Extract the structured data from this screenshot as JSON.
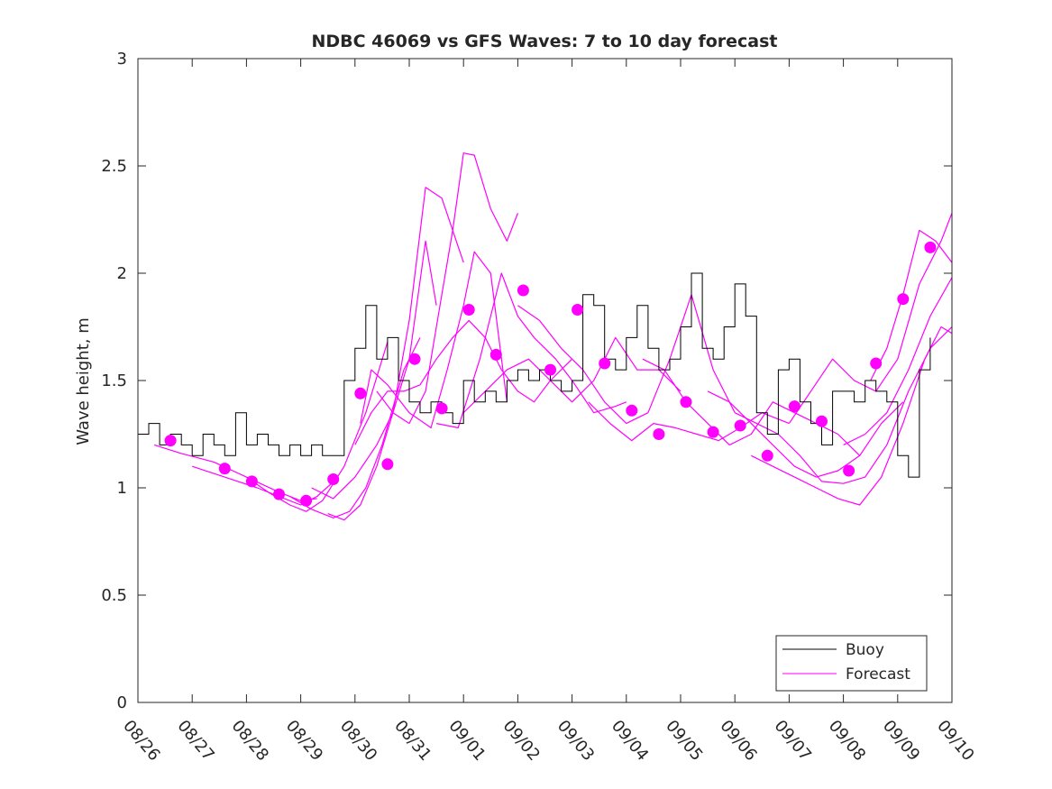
{
  "chart_data": {
    "type": "line",
    "title": "NDBC 46069 vs GFS Waves: 7 to 10 day forecast",
    "xlabel": "",
    "ylabel": "Wave height, m",
    "xlim": [
      0,
      15
    ],
    "ylim": [
      0,
      3
    ],
    "x_units": "days since 08/26",
    "x_ticks": [
      0,
      1,
      2,
      3,
      4,
      5,
      6,
      7,
      8,
      9,
      10,
      11,
      12,
      13,
      14,
      15
    ],
    "x_tick_labels": [
      "08/26",
      "08/27",
      "08/28",
      "08/29",
      "08/30",
      "08/31",
      "09/01",
      "09/02",
      "09/03",
      "09/04",
      "09/05",
      "09/06",
      "09/07",
      "09/08",
      "09/09",
      "09/10"
    ],
    "y_ticks": [
      0,
      0.5,
      1,
      1.5,
      2,
      2.5,
      3
    ],
    "y_tick_labels": [
      "0",
      "0.5",
      "1",
      "1.5",
      "2",
      "2.5",
      "3"
    ],
    "legend": {
      "position": "bottom-right",
      "entries": [
        "Buoy",
        "Forecast"
      ]
    },
    "colors": {
      "buoy": "#000000",
      "forecast": "#ff00ff",
      "axis": "#262626"
    },
    "series": [
      {
        "name": "Buoy",
        "x": [
          0.0,
          0.2,
          0.4,
          0.6,
          0.8,
          1.0,
          1.2,
          1.4,
          1.6,
          1.8,
          2.0,
          2.2,
          2.4,
          2.6,
          2.8,
          3.0,
          3.2,
          3.4,
          3.6,
          3.8,
          4.0,
          4.2,
          4.4,
          4.6,
          4.8,
          5.0,
          5.2,
          5.4,
          5.6,
          5.8,
          6.0,
          6.2,
          6.4,
          6.6,
          6.8,
          7.0,
          7.2,
          7.4,
          7.6,
          7.8,
          8.0,
          8.2,
          8.4,
          8.6,
          8.8,
          9.0,
          9.2,
          9.4,
          9.6,
          9.8,
          10.0,
          10.2,
          10.4,
          10.6,
          10.8,
          11.0,
          11.2,
          11.4,
          11.6,
          11.8,
          12.0,
          12.2,
          12.4,
          12.6,
          12.8,
          13.0,
          13.2,
          13.4,
          13.6,
          13.8,
          14.0,
          14.2,
          14.4,
          14.6
        ],
        "y": [
          1.25,
          1.3,
          1.2,
          1.25,
          1.2,
          1.15,
          1.25,
          1.2,
          1.15,
          1.35,
          1.2,
          1.25,
          1.2,
          1.15,
          1.2,
          1.15,
          1.2,
          1.15,
          1.15,
          1.5,
          1.65,
          1.85,
          1.6,
          1.7,
          1.5,
          1.4,
          1.35,
          1.4,
          1.35,
          1.3,
          1.5,
          1.4,
          1.45,
          1.4,
          1.5,
          1.55,
          1.5,
          1.55,
          1.5,
          1.45,
          1.5,
          1.9,
          1.85,
          1.6,
          1.55,
          1.7,
          1.85,
          1.65,
          1.55,
          1.6,
          1.75,
          2.0,
          1.65,
          1.6,
          1.75,
          1.95,
          1.8,
          1.35,
          1.25,
          1.55,
          1.6,
          1.4,
          1.3,
          1.2,
          1.45,
          1.45,
          1.4,
          1.5,
          1.45,
          1.4,
          1.15,
          1.05,
          1.55,
          1.7
        ]
      },
      {
        "name": "Forecast",
        "segments": [
          {
            "x": [
              0.3,
              0.8,
              1.4,
              2.0,
              2.6,
              3.0,
              3.3
            ],
            "y": [
              1.2,
              1.16,
              1.12,
              1.05,
              0.98,
              0.94,
              0.95
            ]
          },
          {
            "x": [
              1.0,
              1.6,
              2.2,
              2.7,
              3.0,
              3.3,
              3.7
            ],
            "y": [
              1.1,
              1.05,
              1.0,
              0.95,
              0.92,
              0.96,
              1.05
            ]
          },
          {
            "x": [
              2.0,
              2.4,
              2.8,
              3.1,
              3.4,
              3.8,
              4.2,
              4.6
            ],
            "y": [
              1.05,
              0.98,
              0.92,
              0.89,
              0.94,
              1.1,
              1.35,
              1.68
            ]
          },
          {
            "x": [
              2.8,
              3.2,
              3.6,
              3.9,
              4.2,
              4.5,
              4.9,
              5.2
            ],
            "y": [
              0.96,
              0.9,
              0.86,
              0.89,
              1.0,
              1.2,
              1.55,
              1.7
            ]
          },
          {
            "x": [
              3.2,
              3.6,
              4.0,
              4.4,
              4.7,
              5.0,
              5.3,
              5.5
            ],
            "y": [
              1.0,
              0.95,
              1.05,
              1.2,
              1.35,
              1.6,
              2.15,
              1.85
            ]
          },
          {
            "x": [
              3.5,
              3.8,
              4.1,
              4.4,
              4.7,
              5.0,
              5.3,
              5.6,
              6.0
            ],
            "y": [
              0.88,
              0.85,
              0.92,
              1.1,
              1.35,
              1.78,
              2.4,
              2.35,
              2.05
            ]
          },
          {
            "x": [
              4.1,
              4.3,
              4.6,
              5.0,
              5.4,
              5.7,
              6.0,
              6.2,
              6.5,
              6.8
            ],
            "y": [
              1.3,
              1.55,
              1.48,
              1.35,
              1.28,
              1.55,
              1.85,
              2.1,
              2.0,
              1.4
            ]
          },
          {
            "x": [
              4.4,
              4.7,
              5.0,
              5.3,
              5.6,
              5.8,
              6.0,
              6.2,
              6.5,
              6.8,
              7.0
            ],
            "y": [
              1.45,
              1.35,
              1.3,
              1.45,
              1.9,
              2.2,
              2.56,
              2.55,
              2.3,
              2.15,
              2.28
            ]
          },
          {
            "x": [
              4.0,
              4.3,
              4.6,
              4.9,
              5.2,
              5.5,
              5.8,
              6.1,
              6.4,
              6.7,
              7.0,
              7.3,
              7.6,
              8.0
            ],
            "y": [
              1.2,
              1.35,
              1.45,
              1.45,
              1.48,
              1.6,
              1.7,
              1.78,
              1.7,
              1.55,
              1.45,
              1.4,
              1.5,
              1.6
            ]
          },
          {
            "x": [
              5.5,
              5.9,
              6.3,
              6.7,
              7.0,
              7.3,
              7.7,
              8.0,
              8.4,
              8.8,
              9.0
            ],
            "y": [
              1.3,
              1.28,
              1.6,
              2.0,
              1.8,
              1.7,
              1.6,
              1.5,
              1.35,
              1.38,
              1.4
            ]
          },
          {
            "x": [
              6.0,
              6.4,
              6.8,
              7.2,
              7.6,
              8.0,
              8.4,
              8.8,
              9.2,
              9.6,
              10.0
            ],
            "y": [
              1.35,
              1.45,
              1.55,
              1.6,
              1.5,
              1.4,
              1.5,
              1.7,
              1.55,
              1.55,
              1.45
            ]
          },
          {
            "x": [
              7.0,
              7.4,
              7.8,
              8.2,
              8.6,
              9.0,
              9.4,
              9.8,
              10.2,
              10.6,
              11.0
            ],
            "y": [
              1.85,
              1.78,
              1.65,
              1.55,
              1.4,
              1.3,
              1.35,
              1.6,
              1.9,
              1.55,
              1.35
            ]
          },
          {
            "x": [
              8.3,
              8.7,
              9.1,
              9.5,
              9.9,
              10.3,
              10.7,
              11.1,
              11.5,
              12.0
            ],
            "y": [
              1.4,
              1.3,
              1.22,
              1.3,
              1.28,
              1.25,
              1.22,
              1.28,
              1.35,
              1.3
            ]
          },
          {
            "x": [
              9.3,
              9.7,
              10.1,
              10.5,
              10.9,
              11.3,
              11.7,
              12.1,
              12.5,
              12.9,
              13.3
            ],
            "y": [
              1.6,
              1.55,
              1.4,
              1.3,
              1.2,
              1.25,
              1.4,
              1.35,
              1.3,
              1.25,
              1.15
            ]
          },
          {
            "x": [
              10.5,
              10.9,
              11.3,
              11.7,
              12.1,
              12.5,
              12.9,
              13.3,
              13.7,
              14.1
            ],
            "y": [
              1.45,
              1.4,
              1.3,
              1.2,
              1.1,
              1.05,
              1.08,
              1.15,
              1.3,
              1.4
            ]
          },
          {
            "x": [
              11.0,
              11.4,
              11.8,
              12.2,
              12.6,
              13.0,
              13.4,
              13.8,
              14.2,
              14.6,
              15.0
            ],
            "y": [
              1.35,
              1.3,
              1.25,
              1.15,
              1.03,
              1.02,
              1.05,
              1.2,
              1.45,
              1.65,
              1.75
            ]
          },
          {
            "x": [
              11.3,
              11.7,
              12.1,
              12.5,
              12.9,
              13.3,
              13.7,
              14.1,
              14.5,
              14.8,
              15.0
            ],
            "y": [
              1.15,
              1.1,
              1.05,
              1.0,
              0.95,
              0.92,
              1.05,
              1.3,
              1.6,
              1.75,
              1.72
            ]
          },
          {
            "x": [
              12.0,
              12.4,
              12.8,
              13.2,
              13.6,
              14.0,
              14.4,
              14.8,
              15.0
            ],
            "y": [
              1.3,
              1.45,
              1.6,
              1.5,
              1.45,
              1.6,
              1.95,
              2.15,
              2.28
            ]
          },
          {
            "x": [
              13.0,
              13.4,
              13.8,
              14.2,
              14.6,
              15.0
            ],
            "y": [
              1.2,
              1.25,
              1.35,
              1.55,
              1.8,
              1.98
            ]
          },
          {
            "x": [
              13.5,
              13.8,
              14.1,
              14.4,
              14.7,
              15.0
            ],
            "y": [
              1.5,
              1.65,
              1.9,
              2.2,
              2.15,
              2.05
            ]
          }
        ],
        "markers": {
          "x": [
            0.6,
            1.6,
            2.1,
            2.6,
            3.1,
            3.6,
            4.1,
            4.6,
            5.1,
            5.6,
            6.1,
            6.6,
            7.1,
            7.6,
            8.1,
            8.6,
            9.1,
            9.6,
            10.1,
            10.6,
            11.1,
            11.6,
            12.1,
            12.6,
            13.1,
            13.6,
            14.1,
            14.6
          ],
          "y": [
            1.22,
            1.09,
            1.03,
            0.97,
            0.94,
            1.04,
            1.44,
            1.11,
            1.6,
            1.37,
            1.83,
            1.62,
            1.92,
            1.55,
            1.83,
            1.58,
            1.36,
            1.25,
            1.4,
            1.26,
            1.29,
            1.15,
            1.38,
            1.31,
            1.08,
            1.58,
            1.88,
            2.12
          ]
        }
      }
    ]
  }
}
